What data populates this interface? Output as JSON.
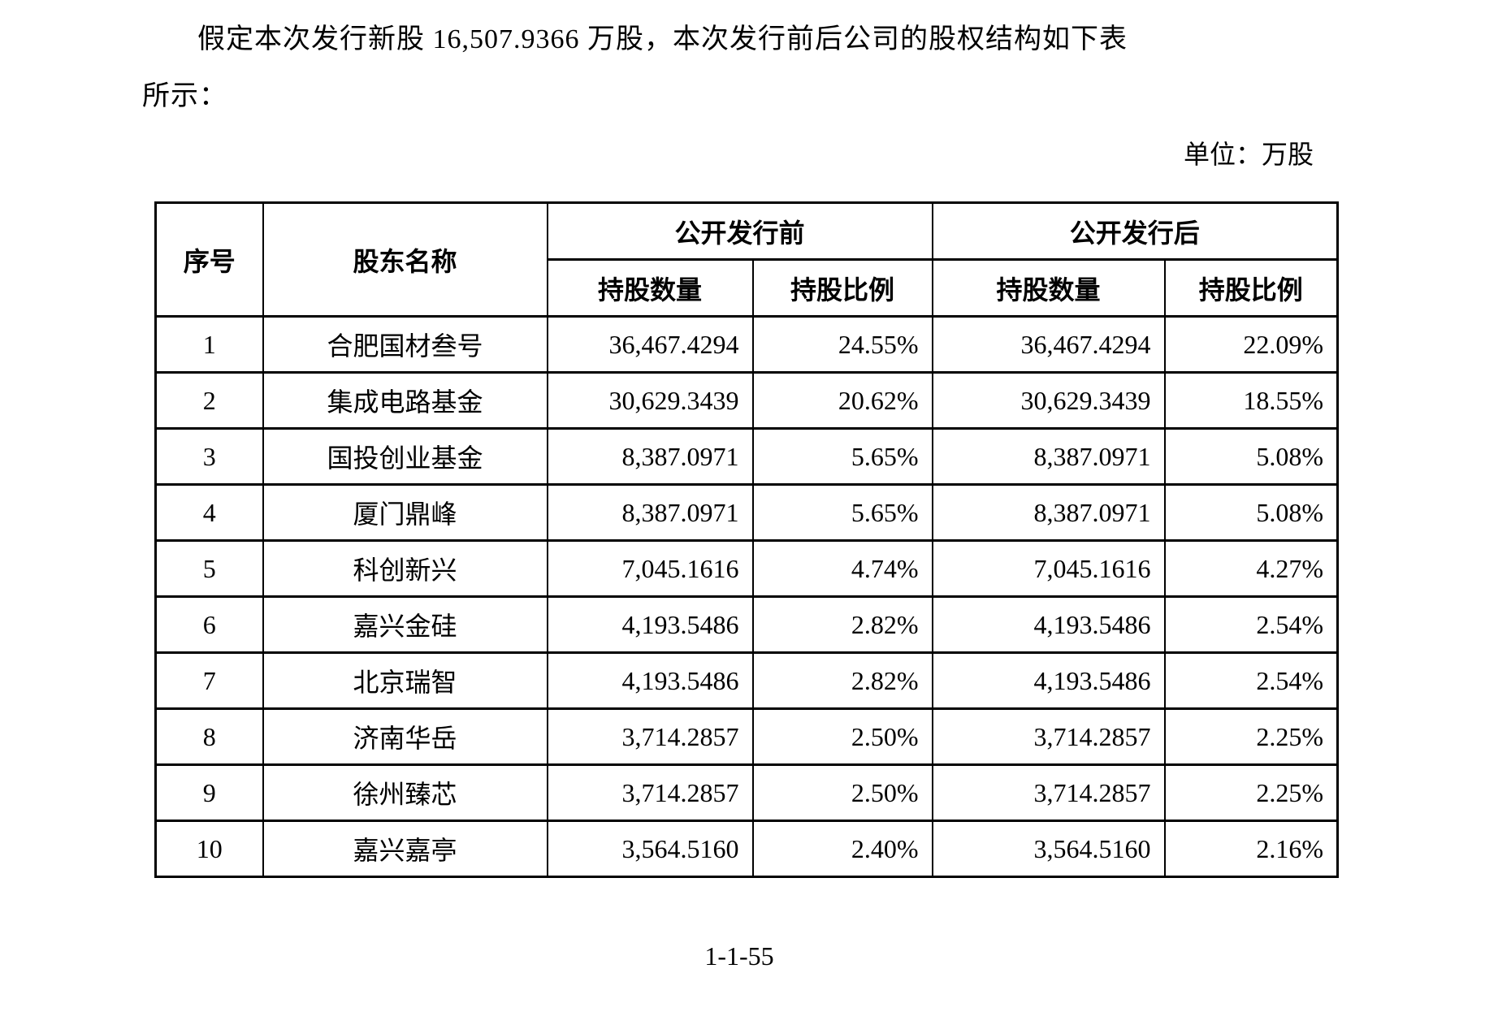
{
  "document": {
    "paragraph_line1": "假定本次发行新股 16,507.9366 万股，本次发行前后公司的股权结构如下表",
    "paragraph_line2": "所示：",
    "unit_label": "单位：万股",
    "page_number": "1-1-55"
  },
  "table": {
    "headers": {
      "index": "序号",
      "shareholder_name": "股东名称",
      "before_offering": "公开发行前",
      "after_offering": "公开发行后",
      "shares_held": "持股数量",
      "share_ratio": "持股比例"
    },
    "rows": [
      {
        "no": "1",
        "name": "合肥国材叁号",
        "before_qty": "36,467.4294",
        "before_ratio": "24.55%",
        "after_qty": "36,467.4294",
        "after_ratio": "22.09%"
      },
      {
        "no": "2",
        "name": "集成电路基金",
        "before_qty": "30,629.3439",
        "before_ratio": "20.62%",
        "after_qty": "30,629.3439",
        "after_ratio": "18.55%"
      },
      {
        "no": "3",
        "name": "国投创业基金",
        "before_qty": "8,387.0971",
        "before_ratio": "5.65%",
        "after_qty": "8,387.0971",
        "after_ratio": "5.08%"
      },
      {
        "no": "4",
        "name": "厦门鼎峰",
        "before_qty": "8,387.0971",
        "before_ratio": "5.65%",
        "after_qty": "8,387.0971",
        "after_ratio": "5.08%"
      },
      {
        "no": "5",
        "name": "科创新兴",
        "before_qty": "7,045.1616",
        "before_ratio": "4.74%",
        "after_qty": "7,045.1616",
        "after_ratio": "4.27%"
      },
      {
        "no": "6",
        "name": "嘉兴金硅",
        "before_qty": "4,193.5486",
        "before_ratio": "2.82%",
        "after_qty": "4,193.5486",
        "after_ratio": "2.54%"
      },
      {
        "no": "7",
        "name": "北京瑞智",
        "before_qty": "4,193.5486",
        "before_ratio": "2.82%",
        "after_qty": "4,193.5486",
        "after_ratio": "2.54%"
      },
      {
        "no": "8",
        "name": "济南华岳",
        "before_qty": "3,714.2857",
        "before_ratio": "2.50%",
        "after_qty": "3,714.2857",
        "after_ratio": "2.25%"
      },
      {
        "no": "9",
        "name": "徐州臻芯",
        "before_qty": "3,714.2857",
        "before_ratio": "2.50%",
        "after_qty": "3,714.2857",
        "after_ratio": "2.25%"
      },
      {
        "no": "10",
        "name": "嘉兴嘉亭",
        "before_qty": "3,564.5160",
        "before_ratio": "2.40%",
        "after_qty": "3,564.5160",
        "after_ratio": "2.16%"
      }
    ]
  }
}
